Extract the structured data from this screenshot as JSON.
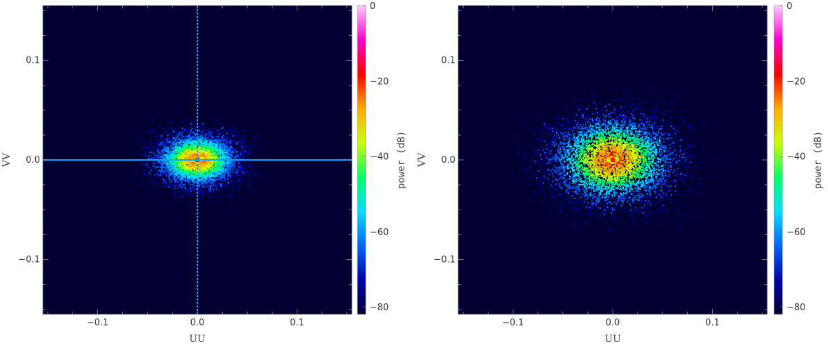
{
  "chart_data": [
    {
      "type": "heatmap",
      "title": "",
      "xlabel": "UU",
      "ylabel": "VV",
      "xlim": [
        -0.155,
        0.155
      ],
      "ylim": [
        -0.155,
        0.155
      ],
      "xticks": [
        -0.1,
        0.0,
        0.1
      ],
      "xtick_labels": [
        "−0.1",
        "0.0",
        "0.1"
      ],
      "yticks": [
        -0.1,
        0.0,
        0.1
      ],
      "ytick_labels": [
        "−0.1",
        "0.0",
        "0.1"
      ],
      "colorbar": {
        "label": "power (dB)",
        "range": [
          -82,
          0
        ],
        "ticks": [
          0,
          -20,
          -40,
          -60,
          -80
        ],
        "tick_labels": [
          "0",
          "−20",
          "−40",
          "−60",
          "−80"
        ],
        "colormap": [
          "#000033",
          "#0000aa",
          "#0066ff",
          "#00ddff",
          "#00ff66",
          "#ccff00",
          "#ffaa00",
          "#ff0000",
          "#ff00cc",
          "#ffccff"
        ]
      },
      "background": "#000033",
      "distribution": {
        "center": [
          0.0,
          0.0
        ],
        "sigma_uu": 0.022,
        "sigma_vv": 0.014,
        "cross_lines": true,
        "cross_line_color": "#00a8ff",
        "peak_db": -5
      }
    },
    {
      "type": "heatmap",
      "title": "",
      "xlabel": "UU",
      "ylabel": "VV",
      "xlim": [
        -0.155,
        0.155
      ],
      "ylim": [
        -0.155,
        0.155
      ],
      "xticks": [
        -0.1,
        0.0,
        0.1
      ],
      "xtick_labels": [
        "−0.1",
        "0.0",
        "0.1"
      ],
      "yticks": [
        -0.1,
        0.0,
        0.1
      ],
      "ytick_labels": [
        "−0.1",
        "0.0",
        "0.1"
      ],
      "colorbar": {
        "label": "power (dB)",
        "range": [
          -82,
          0
        ],
        "ticks": [
          0,
          -20,
          -40,
          -60,
          -80
        ],
        "tick_labels": [
          "0",
          "−20",
          "−40",
          "−60",
          "−80"
        ],
        "colormap": [
          "#000033",
          "#0000aa",
          "#0066ff",
          "#00ddff",
          "#00ff66",
          "#ccff00",
          "#ffaa00",
          "#ff0000",
          "#ff00cc",
          "#ffccff"
        ]
      },
      "background": "#000033",
      "distribution": {
        "center": [
          0.0,
          0.0
        ],
        "sigma_uu": 0.034,
        "sigma_vv": 0.024,
        "cross_lines": false,
        "cross_line_color": "",
        "peak_db": -5
      }
    }
  ]
}
